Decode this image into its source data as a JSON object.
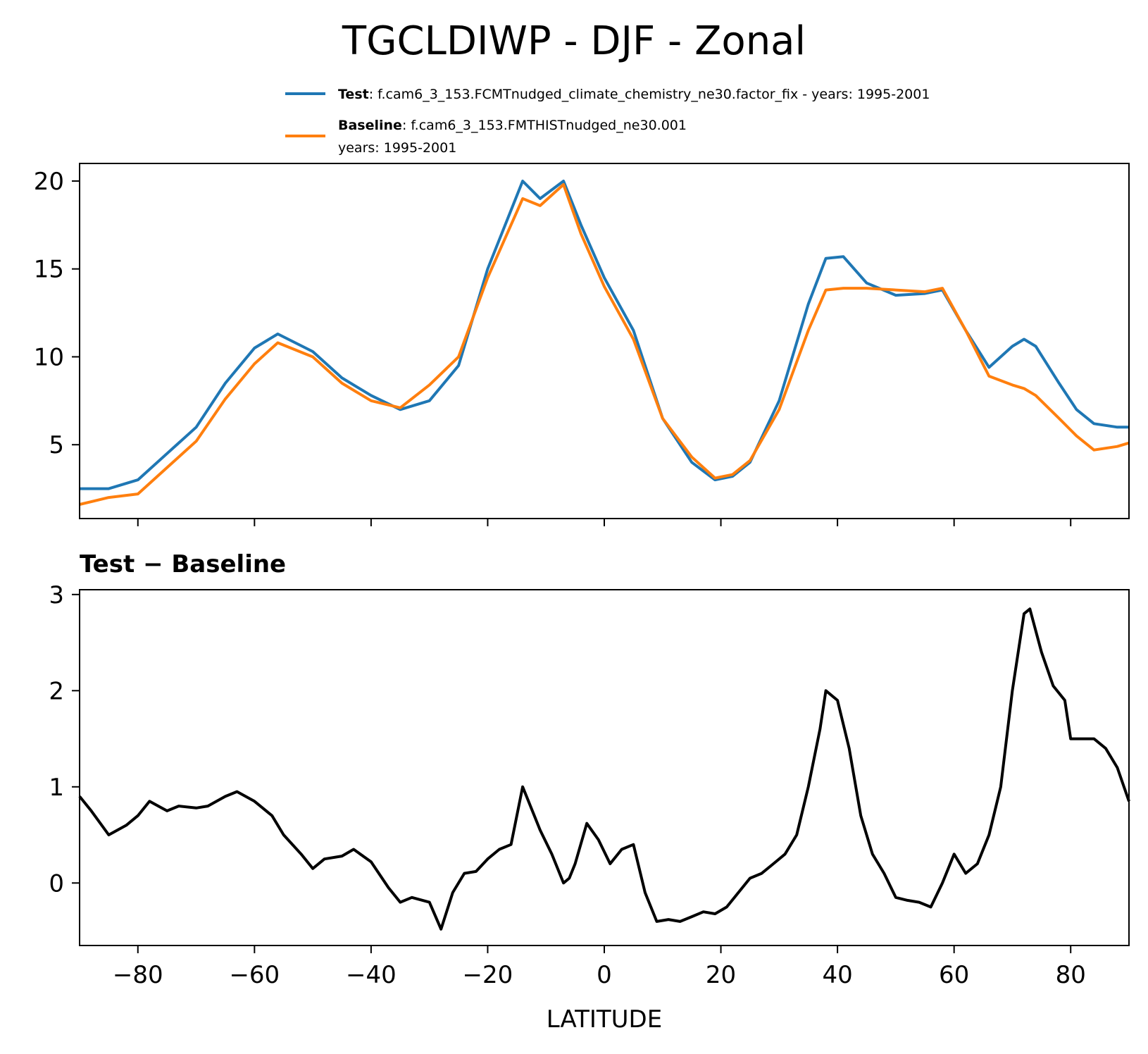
{
  "chart_data": [
    {
      "type": "line",
      "title": "TGCLDIWP - DJF - Zonal",
      "xlabel": "",
      "ylabel": "",
      "xlim": [
        -90,
        90
      ],
      "ylim": [
        0.8,
        21
      ],
      "xticks": [
        -80,
        -60,
        -40,
        -20,
        0,
        20,
        40,
        60,
        80
      ],
      "yticks": [
        5,
        10,
        15,
        20
      ],
      "legend": [
        {
          "bold": "Test",
          "text": ": f.cam6_3_153.FCMTnudged_climate_chemistry_ne30.factor_fix - years: 1995-2001",
          "text2": "",
          "color": "#1f77b4"
        },
        {
          "bold": "Baseline",
          "text": ": f.cam6_3_153.FMTHISTnudged_ne30.001",
          "text2": "years: 1995-2001",
          "color": "#ff7f0e"
        }
      ],
      "series": [
        {
          "name": "Test",
          "color": "#1f77b4",
          "x": [
            -90,
            -85,
            -80,
            -75,
            -70,
            -65,
            -60,
            -56,
            -50,
            -45,
            -40,
            -35,
            -30,
            -25,
            -20,
            -14,
            -11,
            -7,
            -4,
            0,
            5,
            10,
            15,
            19,
            22,
            25,
            30,
            35,
            38,
            41,
            45,
            50,
            55,
            58,
            62,
            66,
            70,
            72,
            74,
            78,
            81,
            84,
            88,
            90
          ],
          "values": [
            2.5,
            2.5,
            3.0,
            4.5,
            6.0,
            8.5,
            10.5,
            11.3,
            10.3,
            8.8,
            7.8,
            7.0,
            7.5,
            9.5,
            15.0,
            20.0,
            19.0,
            20.0,
            17.5,
            14.5,
            11.5,
            6.5,
            4.0,
            3.0,
            3.2,
            4.0,
            7.5,
            13.0,
            15.6,
            15.7,
            14.2,
            13.5,
            13.6,
            13.8,
            11.5,
            9.4,
            10.6,
            11.0,
            10.6,
            8.5,
            7.0,
            6.2,
            6.0,
            6.0
          ]
        },
        {
          "name": "Baseline",
          "color": "#ff7f0e",
          "x": [
            -90,
            -85,
            -80,
            -75,
            -70,
            -65,
            -60,
            -56,
            -50,
            -45,
            -40,
            -35,
            -30,
            -25,
            -20,
            -14,
            -11,
            -7,
            -4,
            0,
            5,
            10,
            15,
            19,
            22,
            25,
            30,
            35,
            38,
            41,
            45,
            50,
            55,
            58,
            62,
            66,
            70,
            72,
            74,
            78,
            81,
            84,
            88,
            90
          ],
          "values": [
            1.6,
            2.0,
            2.2,
            3.7,
            5.2,
            7.6,
            9.6,
            10.8,
            10.0,
            8.5,
            7.5,
            7.1,
            8.4,
            10.0,
            14.5,
            19.0,
            18.6,
            19.8,
            17.0,
            14.0,
            11.0,
            6.5,
            4.3,
            3.1,
            3.3,
            4.1,
            7.0,
            11.5,
            13.8,
            13.9,
            13.9,
            13.8,
            13.7,
            13.9,
            11.5,
            8.9,
            8.4,
            8.2,
            7.8,
            6.5,
            5.5,
            4.7,
            4.9,
            5.1
          ]
        }
      ]
    },
    {
      "type": "line",
      "title": "Test − Baseline",
      "xlabel": "LATITUDE",
      "ylabel": "",
      "xlim": [
        -90,
        90
      ],
      "ylim": [
        -0.65,
        3.05
      ],
      "xticks": [
        -80,
        -60,
        -40,
        -20,
        0,
        20,
        40,
        60,
        80
      ],
      "xtick_labels": [
        "−80",
        "−60",
        "−40",
        "−20",
        "0",
        "20",
        "40",
        "60",
        "80"
      ],
      "yticks": [
        0,
        1,
        2,
        3
      ],
      "series": [
        {
          "name": "Test − Baseline",
          "color": "#000000",
          "x": [
            -90,
            -88,
            -85,
            -82,
            -80,
            -78,
            -75,
            -73,
            -70,
            -68,
            -65,
            -63,
            -60,
            -57,
            -55,
            -52,
            -50,
            -48,
            -45,
            -43,
            -40,
            -37,
            -35,
            -33,
            -30,
            -28,
            -26,
            -24,
            -22,
            -20,
            -18,
            -16,
            -14,
            -13,
            -11,
            -9,
            -7,
            -6,
            -5,
            -3,
            -1,
            1,
            3,
            5,
            7,
            9,
            11,
            13,
            15,
            17,
            19,
            21,
            23,
            25,
            27,
            29,
            31,
            33,
            35,
            37,
            38,
            40,
            42,
            44,
            46,
            48,
            50,
            52,
            54,
            56,
            58,
            60,
            62,
            64,
            66,
            68,
            70,
            72,
            73,
            75,
            77,
            79,
            80,
            82,
            84,
            86,
            88,
            90
          ],
          "values": [
            0.9,
            0.75,
            0.5,
            0.6,
            0.7,
            0.85,
            0.75,
            0.8,
            0.78,
            0.8,
            0.9,
            0.95,
            0.85,
            0.7,
            0.5,
            0.3,
            0.15,
            0.25,
            0.28,
            0.35,
            0.22,
            -0.05,
            -0.2,
            -0.15,
            -0.2,
            -0.48,
            -0.1,
            0.1,
            0.12,
            0.25,
            0.35,
            0.4,
            1.0,
            0.85,
            0.55,
            0.3,
            0.0,
            0.05,
            0.2,
            0.62,
            0.45,
            0.2,
            0.35,
            0.4,
            -0.1,
            -0.4,
            -0.38,
            -0.4,
            -0.35,
            -0.3,
            -0.32,
            -0.25,
            -0.1,
            0.05,
            0.1,
            0.2,
            0.3,
            0.5,
            1.0,
            1.6,
            2.0,
            1.9,
            1.4,
            0.7,
            0.3,
            0.1,
            -0.15,
            -0.18,
            -0.2,
            -0.25,
            0.0,
            0.3,
            0.1,
            0.2,
            0.5,
            1.0,
            2.0,
            2.8,
            2.85,
            2.4,
            2.05,
            1.9,
            1.5,
            1.5,
            1.5,
            1.4,
            1.2,
            0.85
          ]
        }
      ]
    }
  ]
}
